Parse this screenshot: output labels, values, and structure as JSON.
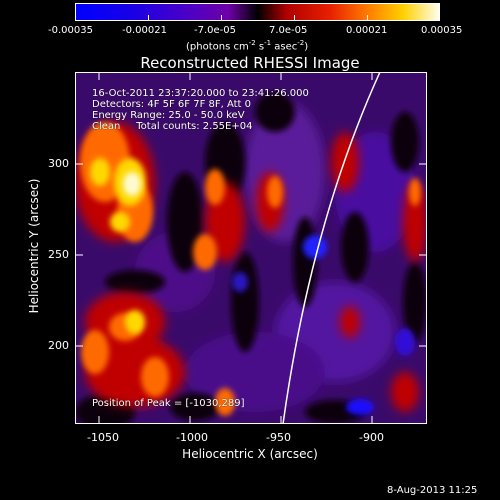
{
  "colorbar": {
    "tick_labels": [
      "-0.00035",
      "-0.00021",
      "-7.0e-05",
      "7.0e-05",
      "0.00021",
      "0.00035"
    ],
    "units_pre": "(photons cm",
    "units_sup1": "-2",
    "units_mid": " s",
    "units_sup2": "-1",
    "units_mid2": " asec",
    "units_sup3": "-2",
    "units_post": ")"
  },
  "plot": {
    "title": "Reconstructed RHESSI Image",
    "xlabel": "Heliocentric X (arcsec)",
    "ylabel": "Heliocentric Y (arcsec)",
    "x_ticks": [
      "-1050",
      "-1000",
      "-950",
      "-900"
    ],
    "y_ticks": [
      "300",
      "250",
      "200"
    ],
    "x_range": [
      -1065,
      -920
    ],
    "y_range": [
      157,
      333
    ]
  },
  "annotations": {
    "line1": "16-Oct-2011 23:37:20.000 to 23:41:26.000",
    "line2": "Detectors: 4F 5F 6F 7F 8F, Att 0",
    "line3": "Energy Range: 25.0 - 50.0 keV",
    "line4": "Clean     Total counts: 2.55E+04",
    "peak": "Position of Peak = [-1030,289]"
  },
  "footer": {
    "date": "8-Aug-2013 11:25"
  },
  "colors": {
    "background": "#000000",
    "foreground": "#ffffff",
    "limb_line": "#ffffff"
  }
}
